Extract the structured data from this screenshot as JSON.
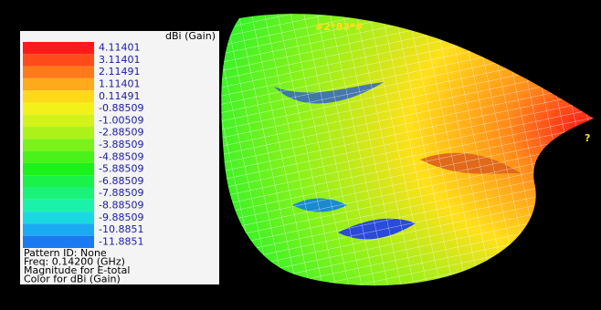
{
  "legend": {
    "title": "dBi (Gain)",
    "levels": [
      {
        "label": "4.11401",
        "color": "#ff1a1a"
      },
      {
        "label": "3.11401",
        "color": "#ff4a1a"
      },
      {
        "label": "2.11491",
        "color": "#ff7a1a"
      },
      {
        "label": "1.11401",
        "color": "#ffaa1a"
      },
      {
        "label": "0.11491",
        "color": "#ffd81a"
      },
      {
        "label": "-0.88509",
        "color": "#f2f21a"
      },
      {
        "label": "-1.00509",
        "color": "#d2f21a"
      },
      {
        "label": "-2.88509",
        "color": "#aaf21a"
      },
      {
        "label": "-3.88509",
        "color": "#7af21a"
      },
      {
        "label": "-4.88509",
        "color": "#4af21a"
      },
      {
        "label": "-5.88509",
        "color": "#1af21a"
      },
      {
        "label": "-6.88509",
        "color": "#1af24a"
      },
      {
        "label": "-7.88509",
        "color": "#1af27a"
      },
      {
        "label": "-8.88509",
        "color": "#1af2aa"
      },
      {
        "label": "-9.88509",
        "color": "#1ad8e0"
      },
      {
        "label": "-10.8851",
        "color": "#1aaaf2"
      },
      {
        "label": "-11.8851",
        "color": "#1a7af2"
      }
    ]
  },
  "info": [
    "Pattern ID: None",
    "Freq: 0.14200 (GHz)",
    "Magnitude for E-total",
    "Color for dBi (Gain)"
  ],
  "plot": {
    "top_label": "#2*83*#",
    "tip_label": "?"
  }
}
